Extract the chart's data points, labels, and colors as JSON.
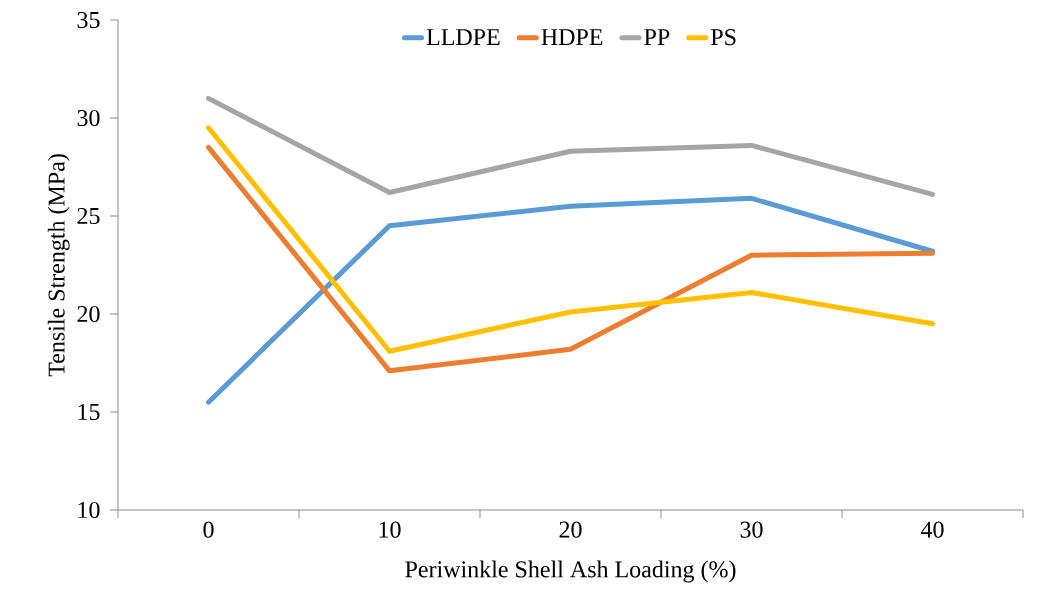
{
  "chart_data": {
    "type": "line",
    "xlabel": "Periwinkle Shell Ash Loading (%)",
    "ylabel": "Tensile Strength (MPa)",
    "categories": [
      "0",
      "10",
      "20",
      "30",
      "40"
    ],
    "series": [
      {
        "name": "LLDPE",
        "color": "#5b9bd5",
        "values": [
          15.5,
          24.5,
          25.5,
          25.9,
          23.2
        ]
      },
      {
        "name": "HDPE",
        "color": "#ed7d31",
        "values": [
          28.5,
          17.1,
          18.2,
          23.0,
          23.1
        ]
      },
      {
        "name": "PP",
        "color": "#a5a5a5",
        "values": [
          31.0,
          26.2,
          28.3,
          28.6,
          26.1
        ]
      },
      {
        "name": "PS",
        "color": "#ffc000",
        "values": [
          29.5,
          18.1,
          20.1,
          21.1,
          19.5
        ]
      }
    ],
    "ylim": [
      10,
      35
    ],
    "yticks": [
      10,
      15,
      20,
      25,
      30,
      35
    ],
    "grid": false,
    "legend": "top",
    "marker": "none",
    "line_style": "solid"
  }
}
